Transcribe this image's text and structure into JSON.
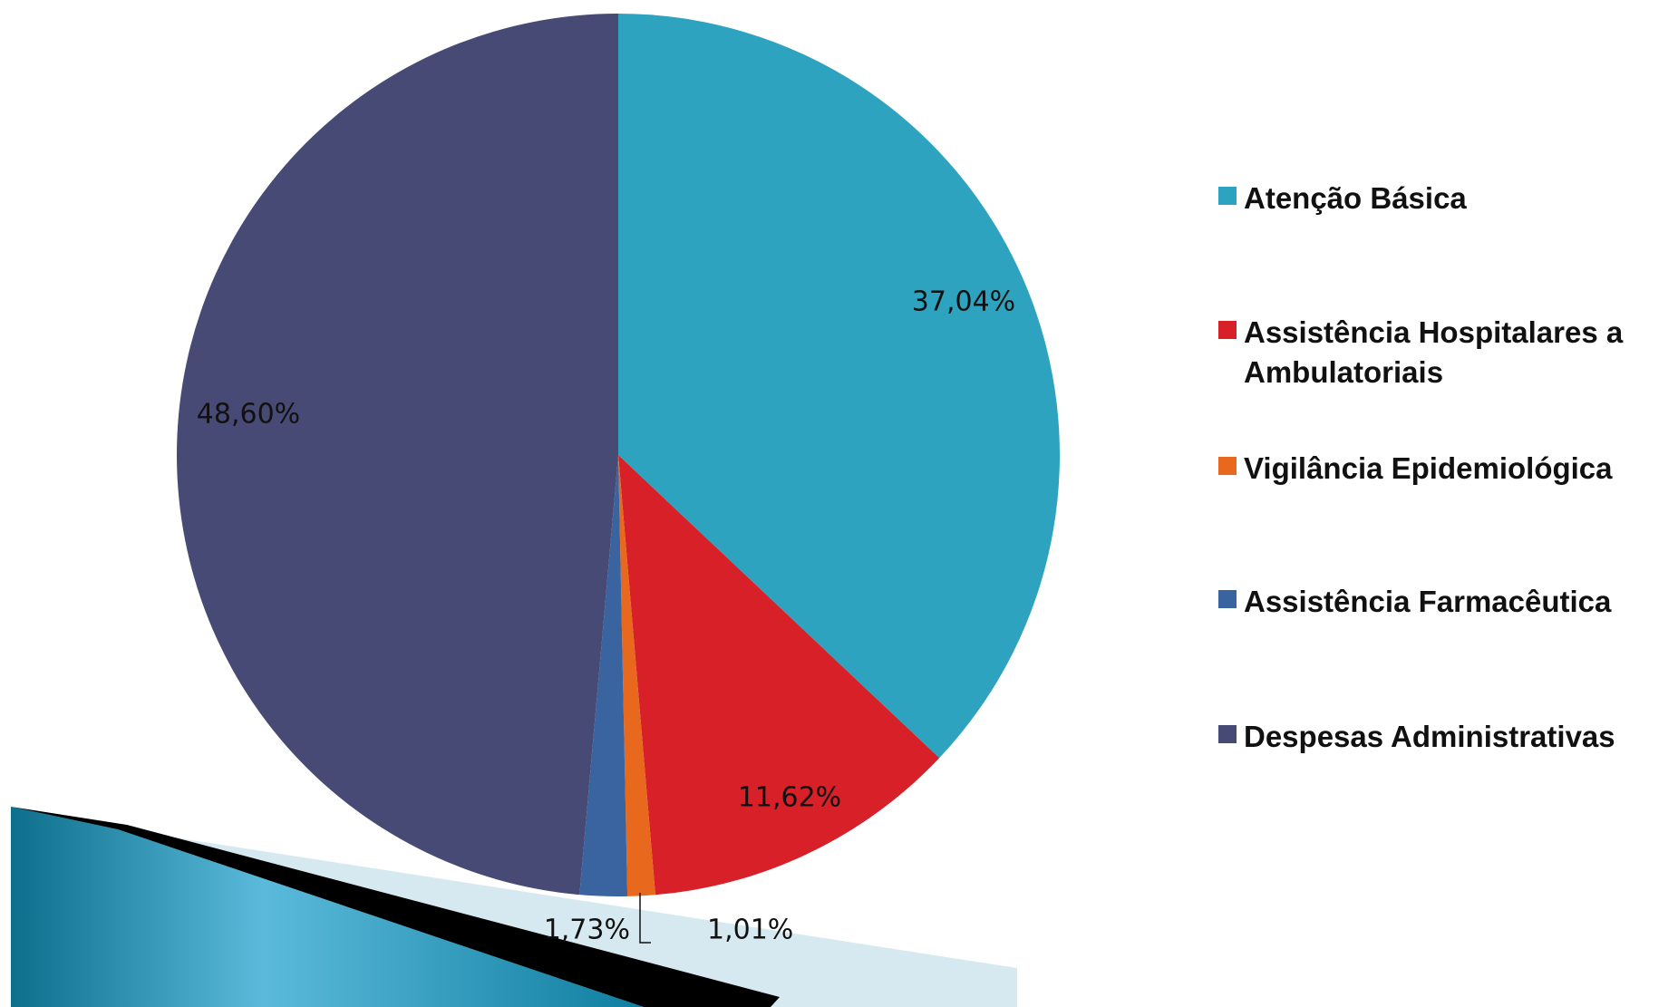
{
  "chart_data": {
    "type": "pie",
    "categories": [
      "Atenção Básica",
      "Assistência Hospitalares a Ambulatoriais",
      "Vigilância Epidemiológica",
      "Assistência Farmacêutica",
      "Despesas Administrativas"
    ],
    "values": [
      37.04,
      11.62,
      1.01,
      1.73,
      48.6
    ],
    "value_labels": [
      "37,04%",
      "11,62%",
      "1,01%",
      "1,73%",
      "48,60%"
    ],
    "colors": [
      "#2ea3bf",
      "#d72027",
      "#e8681e",
      "#3a64a0",
      "#474a75"
    ],
    "legend": "right"
  }
}
